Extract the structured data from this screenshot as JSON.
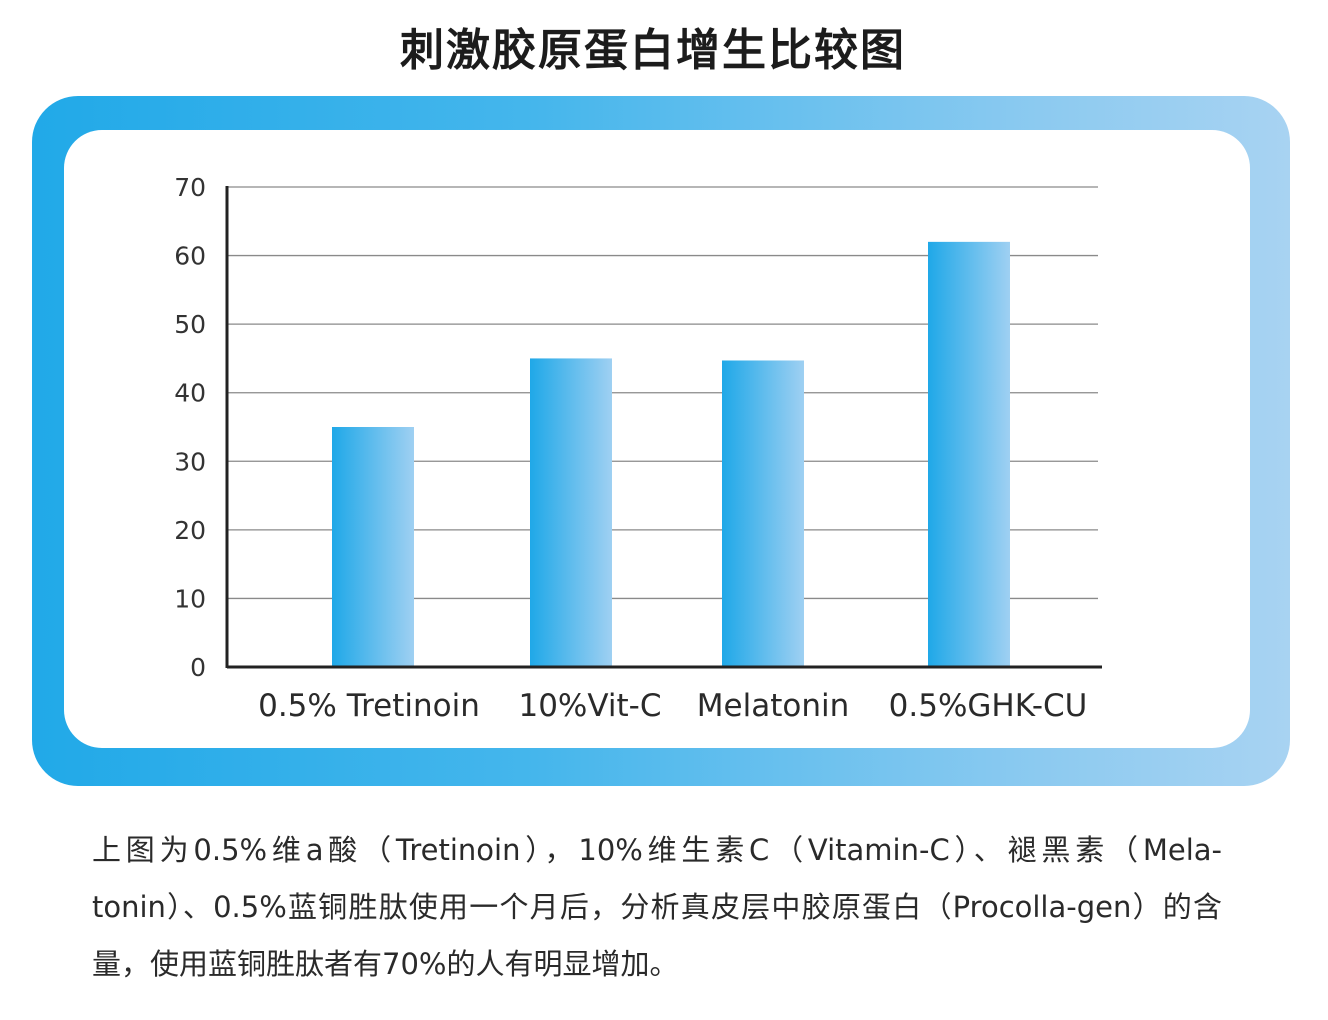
{
  "title": "刺激胶原蛋白增生比较图",
  "caption": "上图为0.5%维a酸（Tretinoin），10%维生素C（Vitamin-C）、褪黑素（Mela-tonin）、0.5%蓝铜胜肽使用一个月后，分析真皮层中胶原蛋白（Procolla-gen）的含量，使用蓝铜胜肽者有70%的人有明显增加。",
  "colors": {
    "frame_start": "#21a9e8",
    "frame_end": "#a8d3f2",
    "bar_start": "#1fa8e8",
    "bar_end": "#9fd0f2",
    "grid": "#8a8a8a",
    "axis": "#222222"
  },
  "chart_data": {
    "type": "bar",
    "categories": [
      "0.5% Tretinoin",
      "10%Vit-C",
      "Melatonin",
      "0.5%GHK-CU"
    ],
    "values": [
      35,
      45,
      44.7,
      62
    ],
    "ylim": [
      0,
      70
    ],
    "yticks": [
      "0",
      "10",
      "20",
      "30",
      "40",
      "50",
      "60",
      "70"
    ],
    "title": "",
    "xlabel": "",
    "ylabel": "",
    "grid": true,
    "legend": "none"
  }
}
